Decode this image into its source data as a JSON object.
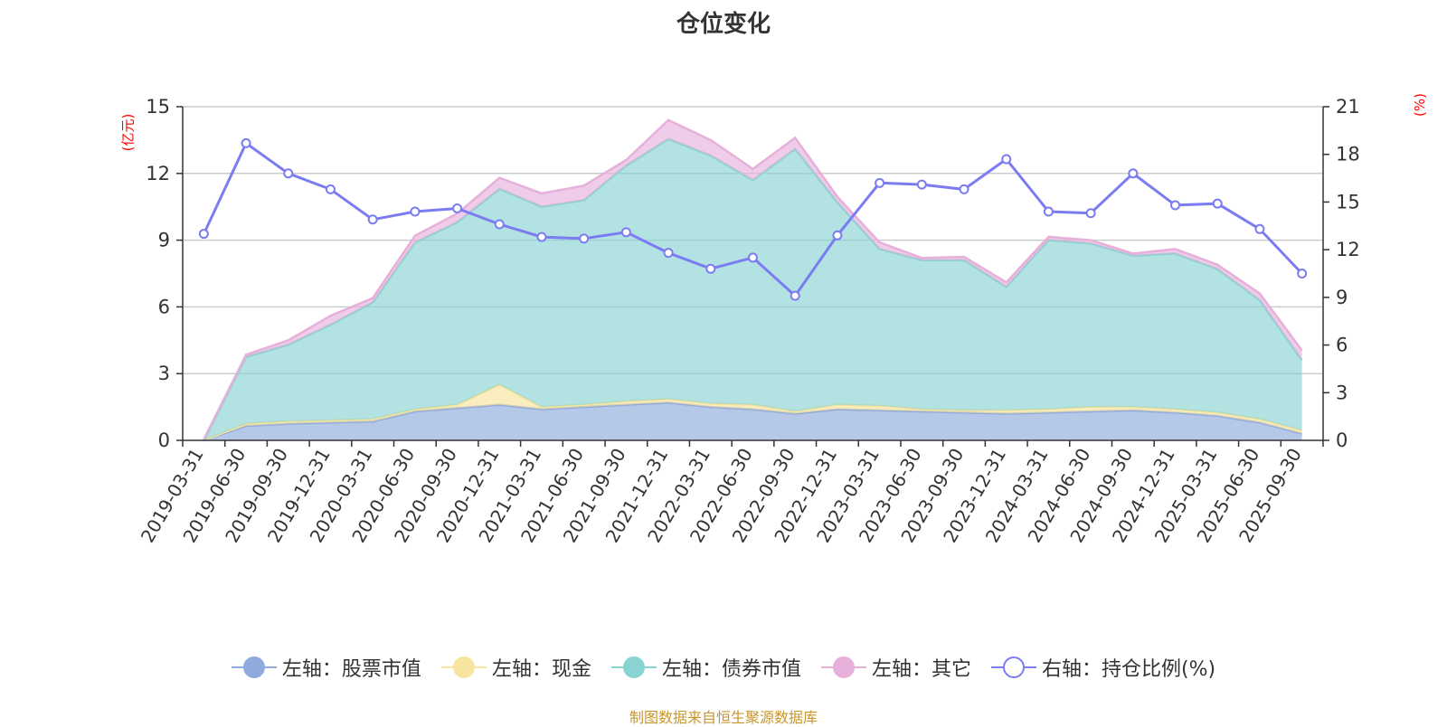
{
  "title": "仓位变化",
  "footer": "制图数据来自恒生聚源数据库",
  "colors": {
    "stock": "#8FAADC",
    "cash": "#F7E49E",
    "bond": "#8AD3D3",
    "other": "#E7B0DA",
    "ratio": "#7C7CF2",
    "unit": "#ff0000",
    "footer": "#C8962B",
    "grid": "#cccccc",
    "axis": "#333333"
  },
  "legend": [
    {
      "label": "左轴：股票市值",
      "icon": "circle-filled-icon",
      "key": "stock"
    },
    {
      "label": "左轴：现金",
      "icon": "circle-filled-icon",
      "key": "cash"
    },
    {
      "label": "左轴：债券市值",
      "icon": "circle-filled-icon",
      "key": "bond"
    },
    {
      "label": "左轴：其它",
      "icon": "circle-filled-icon",
      "key": "other"
    },
    {
      "label": "右轴：持仓比例(%)",
      "icon": "circle-hollow-icon",
      "key": "ratio"
    }
  ],
  "chart_data": {
    "type": "area",
    "stacked": true,
    "title": "仓位变化",
    "categories": [
      "2019-03-31",
      "2019-06-30",
      "2019-09-30",
      "2019-12-31",
      "2020-03-31",
      "2020-06-30",
      "2020-09-30",
      "2020-12-31",
      "2021-03-31",
      "2021-06-30",
      "2021-09-30",
      "2021-12-31",
      "2022-03-31",
      "2022-06-30",
      "2022-09-30",
      "2022-12-31",
      "2023-03-31",
      "2023-06-30",
      "2023-09-30",
      "2023-12-31",
      "2024-03-31",
      "2024-06-30",
      "2024-09-30",
      "2024-12-31",
      "2025-03-31",
      "2025-06-30",
      "2025-09-30"
    ],
    "left_axis": {
      "label": "(亿元)",
      "min": 0,
      "max": 15,
      "ticks": [
        0,
        3,
        6,
        9,
        12,
        15
      ]
    },
    "right_axis": {
      "label": "(%)",
      "min": 0,
      "max": 21,
      "ticks": [
        0,
        3,
        6,
        9,
        12,
        15,
        18,
        21
      ]
    },
    "series": [
      {
        "name": "股票市值",
        "axis": "left",
        "type": "area",
        "values": [
          0,
          0.65,
          0.75,
          0.8,
          0.85,
          1.3,
          1.45,
          1.6,
          1.4,
          1.5,
          1.6,
          1.7,
          1.5,
          1.4,
          1.2,
          1.4,
          1.35,
          1.3,
          1.25,
          1.2,
          1.25,
          1.3,
          1.35,
          1.25,
          1.1,
          0.8,
          0.3
        ]
      },
      {
        "name": "现金",
        "axis": "left",
        "type": "area",
        "values": [
          0,
          0.1,
          0.1,
          0.1,
          0.1,
          0.1,
          0.15,
          0.9,
          0.1,
          0.1,
          0.15,
          0.15,
          0.15,
          0.2,
          0.1,
          0.2,
          0.2,
          0.1,
          0.1,
          0.15,
          0.15,
          0.2,
          0.15,
          0.15,
          0.15,
          0.15,
          0.15
        ]
      },
      {
        "name": "债券市值",
        "axis": "left",
        "type": "area",
        "values": [
          0,
          3.0,
          3.45,
          4.3,
          5.25,
          7.5,
          8.2,
          8.8,
          9.0,
          9.2,
          10.6,
          11.7,
          11.15,
          10.1,
          11.8,
          9.1,
          7.05,
          6.7,
          6.75,
          5.55,
          7.6,
          7.35,
          6.8,
          7.0,
          6.45,
          5.35,
          3.15
        ]
      },
      {
        "name": "其它",
        "axis": "left",
        "type": "area",
        "values": [
          0.05,
          0.1,
          0.2,
          0.4,
          0.2,
          0.3,
          0.4,
          0.5,
          0.6,
          0.65,
          0.25,
          0.85,
          0.7,
          0.5,
          0.5,
          0.25,
          0.3,
          0.1,
          0.15,
          0.2,
          0.15,
          0.15,
          0.1,
          0.2,
          0.2,
          0.3,
          0.45
        ]
      },
      {
        "name": "持仓比例(%)",
        "axis": "right",
        "type": "line",
        "values": [
          13.0,
          18.7,
          16.8,
          15.8,
          13.9,
          14.4,
          14.6,
          13.6,
          12.8,
          12.7,
          13.1,
          11.8,
          10.8,
          11.5,
          9.1,
          12.9,
          16.2,
          16.1,
          15.8,
          17.7,
          14.4,
          14.3,
          16.8,
          14.8,
          14.9,
          13.3,
          10.5
        ]
      }
    ]
  }
}
